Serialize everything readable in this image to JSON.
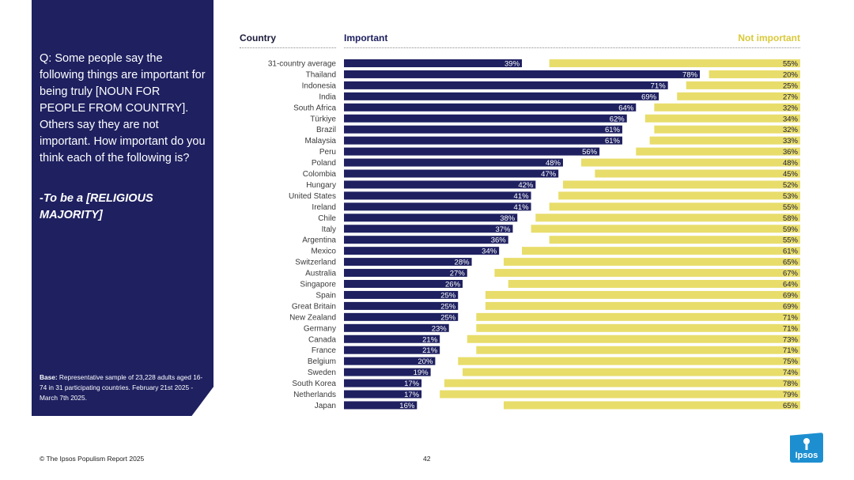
{
  "question": {
    "text": "Q: Some people say the following things are important for being truly [NOUN FOR PEOPLE FROM COUNTRY]. Others say they are not important. How important do you think each of the following is?",
    "emphasis": "-To be a [RELIGIOUS MAJORITY]"
  },
  "base_note": {
    "label": "Base:",
    "text": " Representative sample of 23,228 adults aged 16-74 in 31 participating countries. February 21st 2025 - March 7th 2025."
  },
  "footer": {
    "source": "© The Ipsos Populism Report 2025",
    "page": "42",
    "logo": "Ipsos"
  },
  "colors": {
    "important": "#1e2060",
    "not_important": "#e8dd6b",
    "panel": "#1e2060"
  },
  "chart_data": {
    "type": "bar",
    "title": "",
    "headers": {
      "country": "Country",
      "important": "Important",
      "not_important": "Not important"
    },
    "categories": [
      "31-country average",
      "Thailand",
      "Indonesia",
      "India",
      "South Africa",
      "Türkiye",
      "Brazil",
      "Malaysia",
      "Peru",
      "Poland",
      "Colombia",
      "Hungary",
      "United States",
      "Ireland",
      "Chile",
      "Italy",
      "Argentina",
      "Mexico",
      "Switzerland",
      "Australia",
      "Singapore",
      "Spain",
      "Great Britain",
      "New Zealand",
      "Germany",
      "Canada",
      "France",
      "Belgium",
      "Sweden",
      "South Korea",
      "Netherlands",
      "Japan"
    ],
    "series": [
      {
        "name": "Important",
        "values": [
          39,
          78,
          71,
          69,
          64,
          62,
          61,
          61,
          56,
          48,
          47,
          42,
          41,
          41,
          38,
          37,
          36,
          34,
          28,
          27,
          26,
          25,
          25,
          25,
          23,
          21,
          21,
          20,
          19,
          17,
          17,
          16
        ]
      },
      {
        "name": "Not important",
        "values": [
          55,
          20,
          25,
          27,
          32,
          34,
          32,
          33,
          36,
          48,
          45,
          52,
          53,
          55,
          58,
          59,
          55,
          61,
          65,
          67,
          64,
          69,
          69,
          71,
          71,
          73,
          71,
          75,
          74,
          78,
          79,
          65
        ]
      }
    ],
    "xlim": [
      0,
      100
    ],
    "grid": false,
    "legend": "top"
  }
}
